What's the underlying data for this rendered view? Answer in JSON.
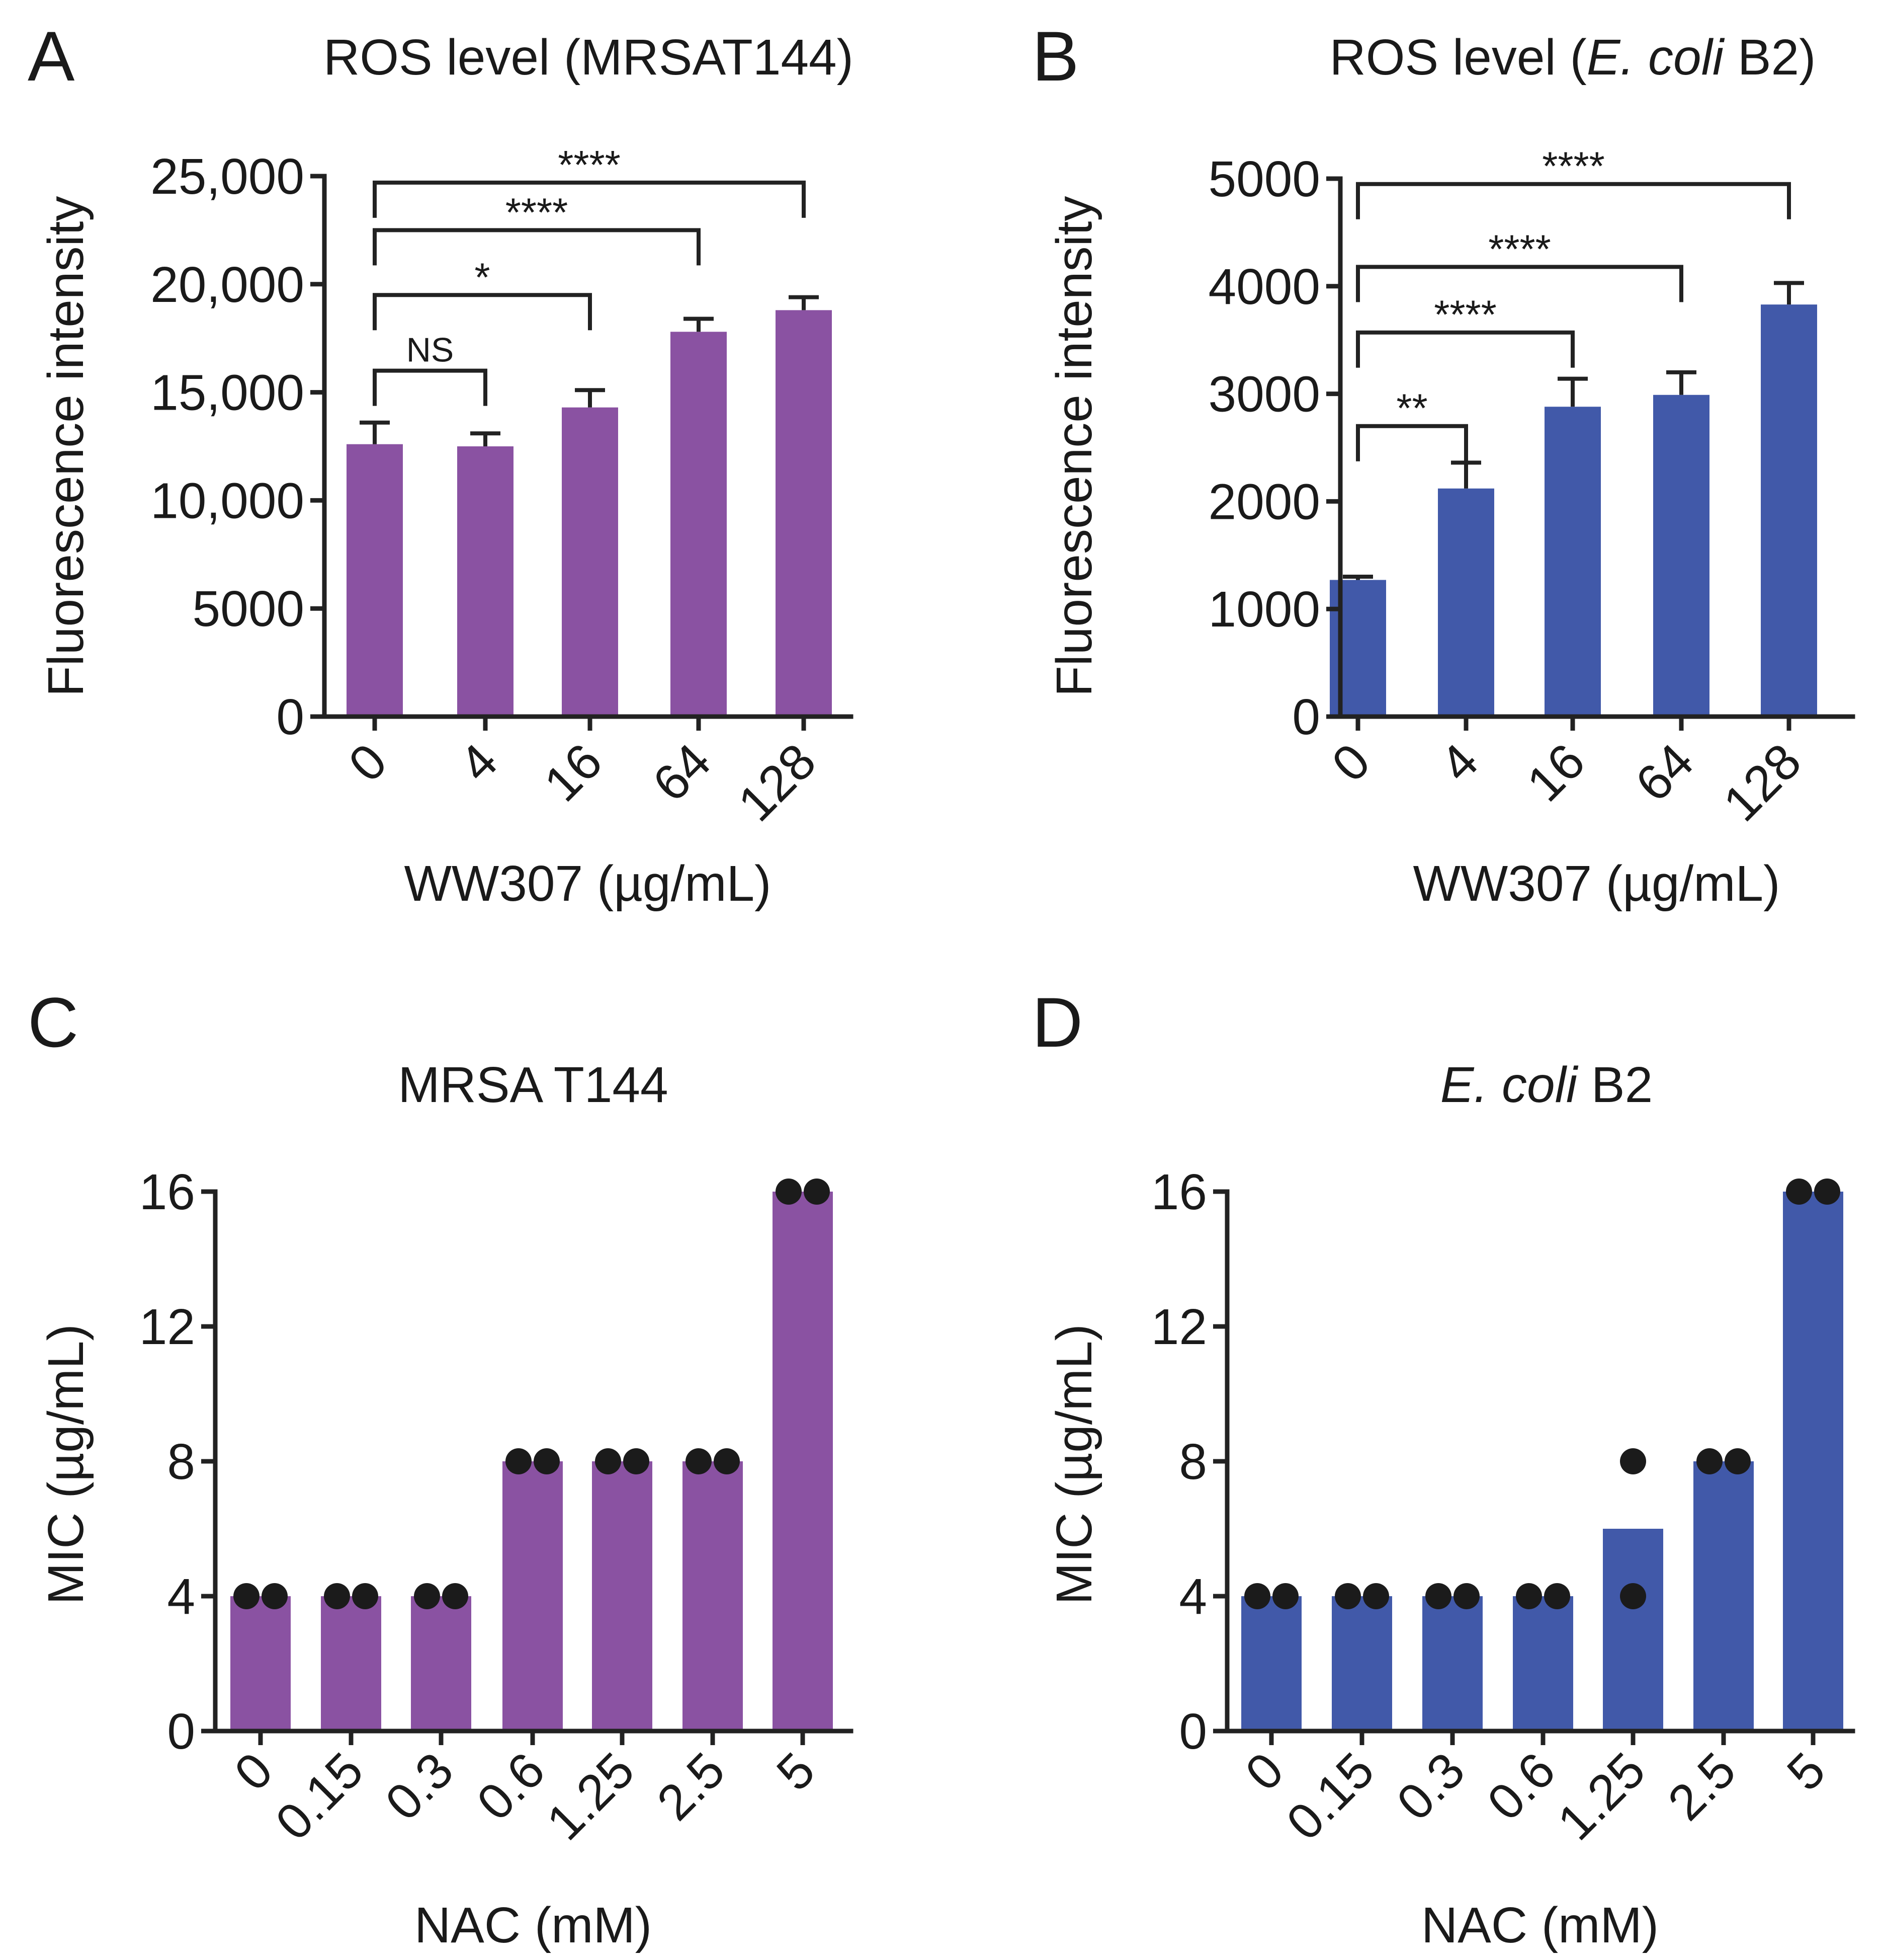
{
  "colors": {
    "purple": "#8a52a2",
    "blue": "#4159a9",
    "axis": "#222222",
    "dot": "#1b1b1b"
  },
  "chart_data": [
    {
      "panel": "A",
      "type": "bar",
      "title_parts": [
        {
          "text": "ROS level (MRSAT144)",
          "italic": false
        }
      ],
      "xlabel": "WW307 (µg/mL)",
      "ylabel": "Fluorescence intensity",
      "categories": [
        "0",
        "4",
        "16",
        "64",
        "128"
      ],
      "values": [
        12600,
        12500,
        14300,
        17800,
        18800
      ],
      "errors": [
        1000,
        600,
        800,
        600,
        600
      ],
      "ylim": [
        0,
        25000
      ],
      "yticks": [
        0,
        5000,
        10000,
        15000,
        20000,
        25000
      ],
      "ytick_labels": [
        "0",
        "5000",
        "10,000",
        "15,000",
        "20,000",
        "25,000"
      ],
      "color": "purple",
      "significance": [
        {
          "from": "0",
          "to": "4",
          "label": "NS",
          "y": 16000
        },
        {
          "from": "0",
          "to": "16",
          "label": "*",
          "y": 19500
        },
        {
          "from": "0",
          "to": "64",
          "label": "****",
          "y": 22500
        },
        {
          "from": "0",
          "to": "128",
          "label": "****",
          "y": 24700
        }
      ]
    },
    {
      "panel": "B",
      "type": "bar",
      "title_parts": [
        {
          "text": "ROS level (",
          "italic": false
        },
        {
          "text": "E. coli",
          "italic": true
        },
        {
          "text": " B2)",
          "italic": false
        }
      ],
      "xlabel": "WW307 (µg/mL)",
      "ylabel": "Fluorescence intensity",
      "categories": [
        "0",
        "4",
        "16",
        "64",
        "128"
      ],
      "values": [
        1270,
        2120,
        2880,
        2990,
        3830
      ],
      "errors": [
        30,
        240,
        260,
        210,
        200
      ],
      "ylim": [
        0,
        5000
      ],
      "yticks": [
        0,
        1000,
        2000,
        3000,
        4000,
        5000
      ],
      "ytick_labels": [
        "0",
        "1000",
        "2000",
        "3000",
        "4000",
        "5000"
      ],
      "color": "blue",
      "significance": [
        {
          "from": "0",
          "to": "4",
          "label": "**",
          "y": 2700
        },
        {
          "from": "0",
          "to": "16",
          "label": "****",
          "y": 3570
        },
        {
          "from": "0",
          "to": "64",
          "label": "****",
          "y": 4180
        },
        {
          "from": "0",
          "to": "128",
          "label": "****",
          "y": 4950
        }
      ]
    },
    {
      "panel": "C",
      "type": "bar",
      "title_parts": [
        {
          "text": "MRSA T144",
          "italic": false
        }
      ],
      "xlabel": "NAC (mM)",
      "ylabel": "MIC (µg/mL)",
      "categories": [
        "0",
        "0.15",
        "0.3",
        "0.6",
        "1.25",
        "2.5",
        "5"
      ],
      "values": [
        4,
        4,
        4,
        8,
        8,
        8,
        16
      ],
      "replicates": [
        [
          4,
          4
        ],
        [
          4,
          4
        ],
        [
          4,
          4
        ],
        [
          8,
          8
        ],
        [
          8,
          8
        ],
        [
          8,
          8
        ],
        [
          16,
          16
        ]
      ],
      "ylim": [
        0,
        16
      ],
      "yticks": [
        0,
        4,
        8,
        12,
        16
      ],
      "ytick_labels": [
        "0",
        "4",
        "8",
        "12",
        "16"
      ],
      "color": "purple"
    },
    {
      "panel": "D",
      "type": "bar",
      "title_parts": [
        {
          "text": "E. coli",
          "italic": true
        },
        {
          "text": " B2",
          "italic": false
        }
      ],
      "xlabel": "NAC (mM)",
      "ylabel": "MIC (µg/mL)",
      "categories": [
        "0",
        "0.15",
        "0.3",
        "0.6",
        "1.25",
        "2.5",
        "5"
      ],
      "values": [
        4,
        4,
        4,
        4,
        6,
        8,
        16
      ],
      "replicates": [
        [
          4,
          4
        ],
        [
          4,
          4
        ],
        [
          4,
          4
        ],
        [
          4,
          4
        ],
        [
          8,
          4
        ],
        [
          8,
          8
        ],
        [
          16,
          16
        ]
      ],
      "ylim": [
        0,
        16
      ],
      "yticks": [
        0,
        4,
        8,
        12,
        16
      ],
      "ytick_labels": [
        "0",
        "4",
        "8",
        "12",
        "16"
      ],
      "color": "blue"
    }
  ]
}
